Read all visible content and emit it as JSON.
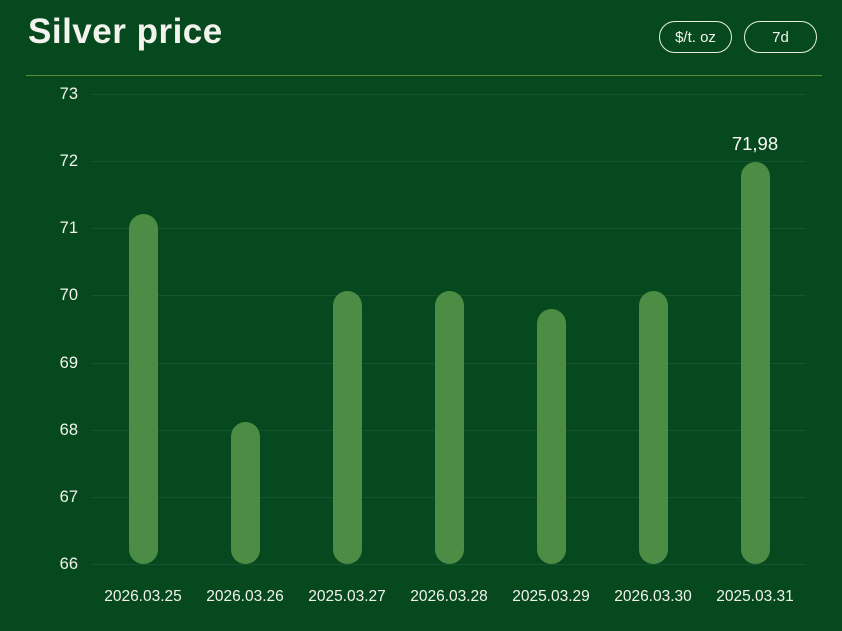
{
  "header": {
    "title": "Silver price",
    "unit_button": "$/t. oz",
    "range_button": "7d"
  },
  "colors": {
    "background": "#07491f",
    "bar": "#4c8c45",
    "text": "#f2f3ec",
    "annotation_text": "#fbfbf5",
    "divider": "#5e8a3d",
    "gridline": "rgba(255,255,255,0.07)"
  },
  "chart_data": {
    "type": "bar",
    "title": "Silver price",
    "unit": "$/t. oz",
    "range": "7d",
    "categories": [
      "2026.03.25",
      "2026.03.26",
      "2025.03.27",
      "2026.03.28",
      "2025.03.29",
      "2026.03.30",
      "2025.03.31"
    ],
    "values": [
      71.22,
      68.11,
      70.07,
      70.07,
      69.8,
      70.07,
      71.98
    ],
    "ylim": [
      66,
      73
    ],
    "yticks": [
      73,
      72,
      71,
      70,
      69,
      68,
      67,
      66
    ],
    "grid": true,
    "legend": false,
    "annotations": [
      {
        "index": 6,
        "text": "71,98"
      }
    ]
  }
}
